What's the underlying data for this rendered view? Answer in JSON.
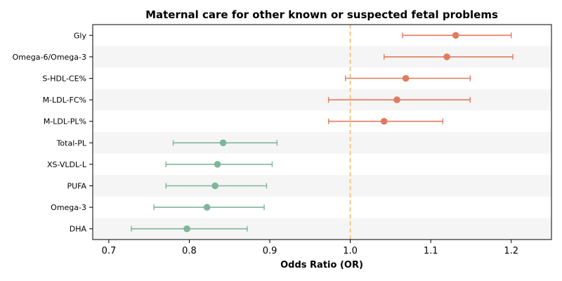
{
  "chart_data": {
    "type": "forest",
    "title": "Maternal care for other known or suspected fetal problems",
    "xlabel": "Odds Ratio (OR)",
    "ylabel": "",
    "xlim": [
      0.68,
      1.25
    ],
    "xticks": [
      0.7,
      0.8,
      0.9,
      1.0,
      1.1,
      1.2
    ],
    "xtick_labels": [
      "0.7",
      "0.8",
      "0.9",
      "1.0",
      "1.1",
      "1.2"
    ],
    "reference_line": 1.0,
    "grid": false,
    "colors": {
      "positive": "#e07b5f",
      "negative": "#7fb59b",
      "reference": "#f5c77e",
      "band": "#f5f5f5"
    },
    "rows": [
      {
        "label": "Gly",
        "or": 1.131,
        "lower": 1.065,
        "upper": 1.2,
        "group": "positive"
      },
      {
        "label": "Omega-6/Omega-3",
        "or": 1.12,
        "lower": 1.042,
        "upper": 1.202,
        "group": "positive"
      },
      {
        "label": "S-HDL-CE%",
        "or": 1.069,
        "lower": 0.994,
        "upper": 1.149,
        "group": "positive"
      },
      {
        "label": "M-LDL-FC%",
        "or": 1.058,
        "lower": 0.973,
        "upper": 1.149,
        "group": "positive"
      },
      {
        "label": "M-LDL-PL%",
        "or": 1.042,
        "lower": 0.973,
        "upper": 1.115,
        "group": "positive"
      },
      {
        "label": "Total-PL",
        "or": 0.842,
        "lower": 0.78,
        "upper": 0.909,
        "group": "negative"
      },
      {
        "label": "XS-VLDL-L",
        "or": 0.835,
        "lower": 0.771,
        "upper": 0.903,
        "group": "negative"
      },
      {
        "label": "PUFA",
        "or": 0.832,
        "lower": 0.771,
        "upper": 0.896,
        "group": "negative"
      },
      {
        "label": "Omega-3",
        "or": 0.822,
        "lower": 0.756,
        "upper": 0.893,
        "group": "negative"
      },
      {
        "label": "DHA",
        "or": 0.797,
        "lower": 0.728,
        "upper": 0.872,
        "group": "negative"
      }
    ]
  }
}
